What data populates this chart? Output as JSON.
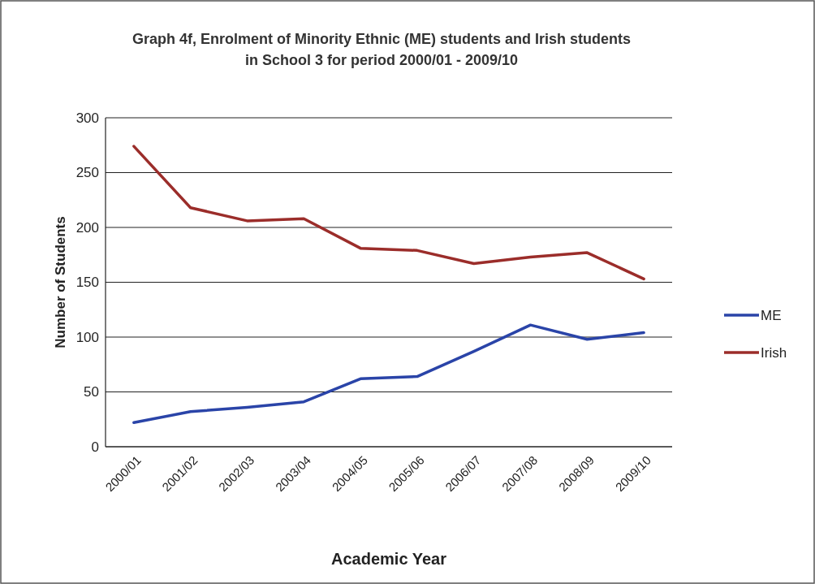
{
  "chart_data": {
    "type": "line",
    "title": "Graph 4f, Enrolment of Minority Ethnic (ME) students and Irish students in School 3 for period 2000/01 - 2009/10",
    "xlabel": "Academic Year",
    "ylabel": "Number of Students",
    "categories": [
      "2000/01",
      "2001/02",
      "2002/03",
      "2003/04",
      "2004/05",
      "2005/06",
      "2006/07",
      "2007/08",
      "2008/09",
      "2009/10"
    ],
    "series": [
      {
        "name": "ME",
        "color": "#2a44a8",
        "values": [
          22,
          32,
          36,
          41,
          62,
          64,
          87,
          111,
          98,
          104
        ]
      },
      {
        "name": "Irish",
        "color": "#9b2d2a",
        "values": [
          274,
          218,
          206,
          208,
          181,
          179,
          167,
          173,
          177,
          153
        ]
      }
    ],
    "ylim": [
      0,
      300
    ],
    "yticks": [
      0,
      50,
      100,
      150,
      200,
      250,
      300
    ],
    "grid": "y",
    "legend": "right",
    "marker": "none",
    "line_style": "solid"
  }
}
